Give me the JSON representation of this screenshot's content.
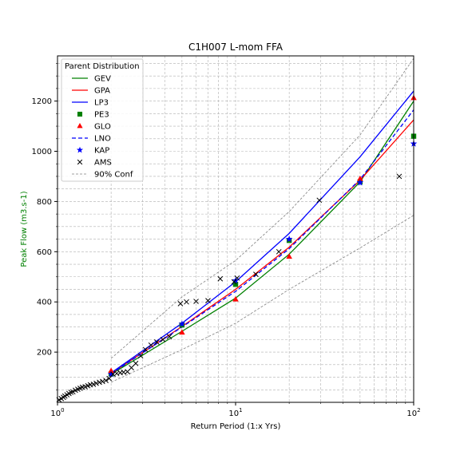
{
  "chart_data": {
    "type": "line",
    "title": "C1H007 L-mom FFA",
    "xlabel": "Return Period (1:x Yrs)",
    "ylabel": "Peak Flow (m3.s-1)",
    "ylabel_color": "#008000",
    "x_scale": "log",
    "xlim": [
      1,
      100
    ],
    "ylim": [
      0,
      1380
    ],
    "x_ticks": [
      {
        "value": 1,
        "base": "10",
        "exp": "0"
      },
      {
        "value": 10,
        "base": "10",
        "exp": "1"
      },
      {
        "value": 100,
        "base": "10",
        "exp": "2"
      }
    ],
    "y_ticks": [
      200,
      400,
      600,
      800,
      1000,
      1200
    ],
    "grid": true,
    "grid_minor": true,
    "legend": {
      "title": "Parent Distribution",
      "placement": "top-left",
      "entries": [
        {
          "label": "GEV",
          "kind": "line",
          "color": "#008000",
          "dash": "solid"
        },
        {
          "label": "GPA",
          "kind": "line",
          "color": "#ff0000",
          "dash": "solid"
        },
        {
          "label": "LP3",
          "kind": "line",
          "color": "#0000ff",
          "dash": "solid"
        },
        {
          "label": "PE3",
          "kind": "marker",
          "marker": "square",
          "color": "#008000"
        },
        {
          "label": "GLO",
          "kind": "marker",
          "marker": "triangle",
          "color": "#ff0000"
        },
        {
          "label": "LNO",
          "kind": "line",
          "color": "#0000ff",
          "dash": "dashed"
        },
        {
          "label": "KAP",
          "kind": "marker",
          "marker": "star",
          "color": "#0000ff"
        },
        {
          "label": "AMS",
          "kind": "marker",
          "marker": "x",
          "color": "#000000"
        },
        {
          "label": "90% Conf",
          "kind": "line",
          "color": "#808080",
          "dash": "dashed-thin"
        }
      ]
    },
    "series": [
      {
        "name": "GEV",
        "style": "line",
        "color": "#008000",
        "dash": "solid",
        "width": 1.3,
        "x": [
          2,
          5,
          10,
          20,
          50,
          100
        ],
        "y": [
          112,
          283,
          415,
          590,
          878,
          1200
        ]
      },
      {
        "name": "GPA",
        "style": "line",
        "color": "#ff0000",
        "dash": "solid",
        "width": 1.3,
        "x": [
          2,
          5,
          10,
          20,
          50,
          100
        ],
        "y": [
          115,
          302,
          450,
          618,
          885,
          1125
        ]
      },
      {
        "name": "LP3",
        "style": "line",
        "color": "#0000ff",
        "dash": "solid",
        "width": 1.3,
        "x": [
          2,
          5,
          10,
          20,
          50,
          100
        ],
        "y": [
          117,
          315,
          480,
          673,
          978,
          1240
        ]
      },
      {
        "name": "LNO",
        "style": "line",
        "color": "#0000ff",
        "dash": "dashed",
        "width": 1.3,
        "x": [
          2,
          5,
          10,
          20,
          50,
          100
        ],
        "y": [
          114,
          300,
          442,
          612,
          888,
          1165
        ]
      },
      {
        "name": "90% Conf",
        "style": "line",
        "color": "#808080",
        "dash": "dashed-thin",
        "width": 0.8,
        "x": [
          2,
          5,
          10,
          20,
          50,
          100
        ],
        "y": [
          175,
          420,
          565,
          760,
          1065,
          1370
        ]
      },
      {
        "name": "90% Conf",
        "style": "line",
        "color": "#808080",
        "dash": "dashed-thin",
        "width": 0.8,
        "x": [
          2,
          5,
          10,
          20,
          50,
          100
        ],
        "y": [
          80,
          210,
          315,
          450,
          615,
          745
        ]
      },
      {
        "name": "PE3",
        "style": "marker",
        "marker": "square",
        "color": "#008000",
        "x": [
          2,
          5,
          10,
          20,
          50,
          100
        ],
        "y": [
          113,
          308,
          470,
          645,
          878,
          1060
        ]
      },
      {
        "name": "GLO",
        "style": "marker",
        "marker": "triangle",
        "color": "#ff0000",
        "x": [
          2,
          5,
          10,
          20,
          50,
          100
        ],
        "y": [
          125,
          278,
          410,
          580,
          890,
          1212
        ]
      },
      {
        "name": "KAP",
        "style": "marker",
        "marker": "star",
        "color": "#0000ff",
        "x": [
          2,
          5,
          10,
          20,
          50,
          100
        ],
        "y": [
          112,
          312,
          485,
          650,
          875,
          1030
        ]
      },
      {
        "name": "AMS",
        "style": "marker",
        "marker": "x",
        "color": "#000000",
        "x": [
          1.02,
          1.05,
          1.08,
          1.1,
          1.13,
          1.16,
          1.19,
          1.22,
          1.26,
          1.3,
          1.34,
          1.38,
          1.43,
          1.48,
          1.53,
          1.59,
          1.65,
          1.72,
          1.79,
          1.87,
          1.95,
          2.05,
          2.15,
          2.25,
          2.35,
          2.47,
          2.6,
          2.75,
          2.93,
          3.12,
          3.35,
          3.61,
          3.91,
          4.25,
          4.9,
          5.3,
          6.0,
          7.0,
          8.2,
          9.8,
          10.2,
          13.0,
          17.5,
          29.5,
          83.0
        ],
        "y": [
          10,
          15,
          20,
          25,
          30,
          35,
          40,
          42,
          48,
          52,
          56,
          60,
          62,
          66,
          70,
          72,
          76,
          80,
          83,
          87,
          95,
          112,
          115,
          118,
          120,
          122,
          138,
          155,
          185,
          210,
          228,
          240,
          250,
          262,
          393,
          400,
          402,
          405,
          492,
          480,
          495,
          510,
          600,
          805,
          900
        ]
      }
    ]
  }
}
